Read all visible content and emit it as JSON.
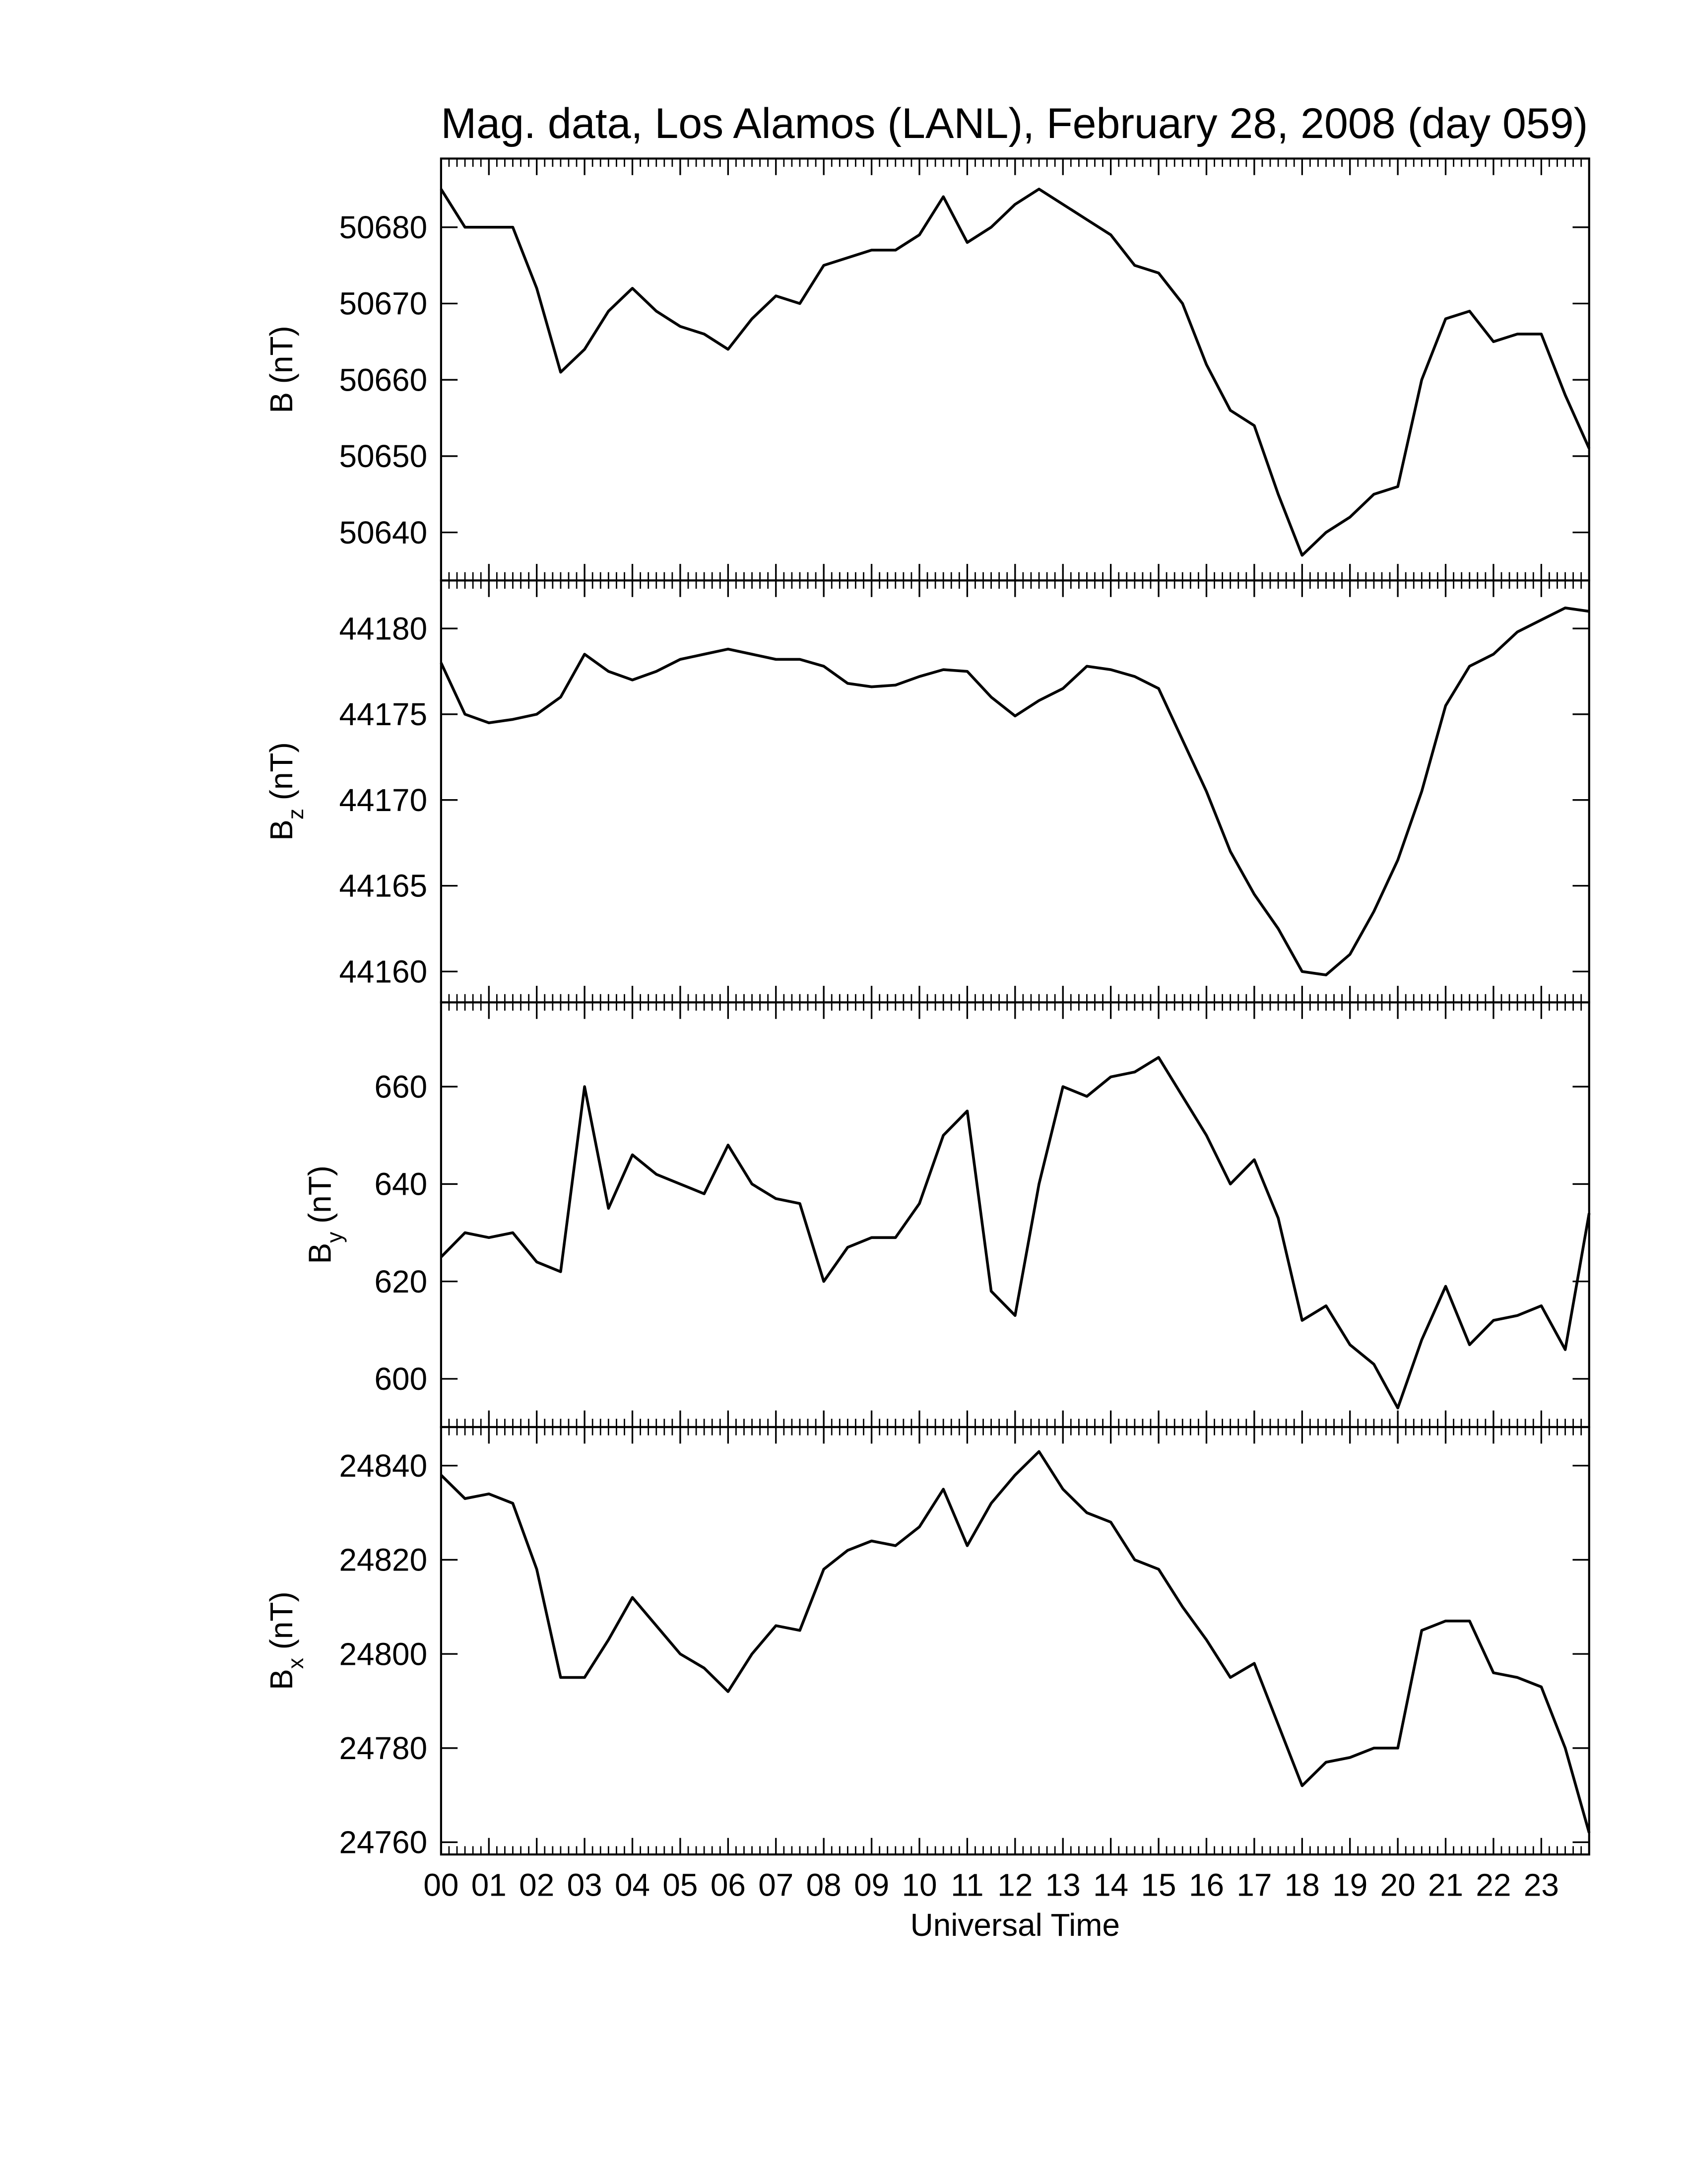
{
  "chart_data": [
    {
      "type": "line",
      "title": "Mag. data, Los Alamos (LANL), February 28, 2008 (day 059)",
      "ylabel": {
        "symbol": "B",
        "unit": "(nT)"
      },
      "color": "#000000",
      "x": [
        0,
        0.5,
        1,
        1.5,
        2,
        2.5,
        3,
        3.5,
        4,
        4.5,
        5,
        5.5,
        6,
        6.5,
        7,
        7.5,
        8,
        8.5,
        9,
        9.5,
        10,
        10.5,
        11,
        11.5,
        12,
        12.5,
        13,
        13.5,
        14,
        14.5,
        15,
        15.5,
        16,
        16.5,
        17,
        17.5,
        18,
        18.5,
        19,
        19.5,
        20,
        20.5,
        21,
        21.5,
        22,
        22.5,
        23,
        23.5,
        24
      ],
      "values": [
        50685,
        50680,
        50680,
        50680,
        50672,
        50661,
        50664,
        50669,
        50672,
        50669,
        50667,
        50666,
        50664,
        50668,
        50671,
        50670,
        50675,
        50676,
        50677,
        50677,
        50679,
        50684,
        50678,
        50680,
        50683,
        50685,
        50683,
        50681,
        50679,
        50675,
        50674,
        50670,
        50662,
        50656,
        50654,
        50645,
        50637,
        50640,
        50642,
        50645,
        50646,
        50660,
        50668,
        50669,
        50665,
        50666,
        50666,
        50658,
        50651
      ],
      "xlim": [
        0,
        24
      ],
      "ylim": [
        50633.7,
        50689
      ],
      "yticks": [
        50640,
        50650,
        50660,
        50670,
        50680
      ]
    },
    {
      "type": "line",
      "ylabel": {
        "symbol": "B",
        "subscript": "z",
        "unit": "(nT)"
      },
      "color": "#000000",
      "x": [
        0,
        0.5,
        1,
        1.5,
        2,
        2.5,
        3,
        3.5,
        4,
        4.5,
        5,
        5.5,
        6,
        6.5,
        7,
        7.5,
        8,
        8.5,
        9,
        9.5,
        10,
        10.5,
        11,
        11.5,
        12,
        12.5,
        13,
        13.5,
        14,
        14.5,
        15,
        15.5,
        16,
        16.5,
        17,
        17.5,
        18,
        18.5,
        19,
        19.5,
        20,
        20.5,
        21,
        21.5,
        22,
        22.5,
        23,
        23.5,
        24
      ],
      "values": [
        44178,
        44175,
        44174.5,
        44174.7,
        44175,
        44176,
        44178.5,
        44177.5,
        44177,
        44177.5,
        44178.2,
        44178.5,
        44178.8,
        44178.5,
        44178.2,
        44178.2,
        44177.8,
        44176.8,
        44176.6,
        44176.7,
        44177.2,
        44177.6,
        44177.5,
        44176,
        44174.9,
        44175.8,
        44176.5,
        44177.8,
        44177.6,
        44177.2,
        44176.5,
        44173.5,
        44170.5,
        44167,
        44164.5,
        44162.5,
        44160,
        44159.8,
        44161,
        44163.5,
        44166.5,
        44170.5,
        44175.5,
        44177.8,
        44178.5,
        44179.8,
        44180.5,
        44181.2,
        44181
      ],
      "xlim": [
        0,
        24
      ],
      "ylim": [
        44158.2,
        44182.8
      ],
      "yticks": [
        44160,
        44165,
        44170,
        44175,
        44180
      ]
    },
    {
      "type": "line",
      "ylabel": {
        "symbol": "B",
        "subscript": "y",
        "unit": "(nT)"
      },
      "color": "#000000",
      "x": [
        0,
        0.5,
        1,
        1.5,
        2,
        2.5,
        3,
        3.5,
        4,
        4.5,
        5,
        5.5,
        6,
        6.5,
        7,
        7.5,
        8,
        8.5,
        9,
        9.5,
        10,
        10.5,
        11,
        11.5,
        12,
        12.5,
        13,
        13.5,
        14,
        14.5,
        15,
        15.5,
        16,
        16.5,
        17,
        17.5,
        18,
        18.5,
        19,
        19.5,
        20,
        20.5,
        21,
        21.5,
        22,
        22.5,
        23,
        23.5,
        24
      ],
      "values": [
        625,
        630,
        629,
        630,
        624,
        622,
        660,
        635,
        646,
        642,
        640,
        638,
        648,
        640,
        637,
        636,
        620,
        627,
        629,
        629,
        636,
        650,
        655,
        618,
        613,
        640,
        660,
        658,
        662,
        663,
        666,
        658,
        650,
        640,
        645,
        633,
        612,
        615,
        607,
        603,
        594,
        608,
        619,
        607,
        612,
        613,
        615,
        606,
        634
      ],
      "xlim": [
        0,
        24
      ],
      "ylim": [
        590.1,
        677.3
      ],
      "yticks": [
        600,
        620,
        640,
        660
      ]
    },
    {
      "type": "line",
      "ylabel": {
        "symbol": "B",
        "subscript": "x",
        "unit": "(nT)"
      },
      "xlabel": "Universal Time",
      "color": "#000000",
      "x": [
        0,
        0.5,
        1,
        1.5,
        2,
        2.5,
        3,
        3.5,
        4,
        4.5,
        5,
        5.5,
        6,
        6.5,
        7,
        7.5,
        8,
        8.5,
        9,
        9.5,
        10,
        10.5,
        11,
        11.5,
        12,
        12.5,
        13,
        13.5,
        14,
        14.5,
        15,
        15.5,
        16,
        16.5,
        17,
        17.5,
        18,
        18.5,
        19,
        19.5,
        20,
        20.5,
        21,
        21.5,
        22,
        22.5,
        23,
        23.5,
        24
      ],
      "values": [
        24838,
        24833,
        24834,
        24832,
        24818,
        24795,
        24795,
        24803,
        24812,
        24806,
        24800,
        24797,
        24792,
        24800,
        24806,
        24805,
        24818,
        24822,
        24824,
        24823,
        24827,
        24835,
        24823,
        24832,
        24838,
        24843,
        24835,
        24830,
        24828,
        24820,
        24818,
        24810,
        24803,
        24795,
        24798,
        24785,
        24772,
        24777,
        24778,
        24780,
        24780,
        24805,
        24807,
        24807,
        24796,
        24795,
        24793,
        24780,
        24762
      ],
      "xlim": [
        0,
        24
      ],
      "ylim": [
        24757.4,
        24848.2
      ],
      "yticks": [
        24760,
        24780,
        24800,
        24820,
        24840
      ],
      "xticks": [
        {
          "value": 0,
          "label": "00"
        },
        {
          "value": 1,
          "label": "01"
        },
        {
          "value": 2,
          "label": "02"
        },
        {
          "value": 3,
          "label": "03"
        },
        {
          "value": 4,
          "label": "04"
        },
        {
          "value": 5,
          "label": "05"
        },
        {
          "value": 6,
          "label": "06"
        },
        {
          "value": 7,
          "label": "07"
        },
        {
          "value": 8,
          "label": "08"
        },
        {
          "value": 9,
          "label": "09"
        },
        10,
        11,
        12,
        13,
        14,
        15,
        16,
        17,
        18,
        19,
        20,
        21,
        22,
        23
      ]
    }
  ]
}
